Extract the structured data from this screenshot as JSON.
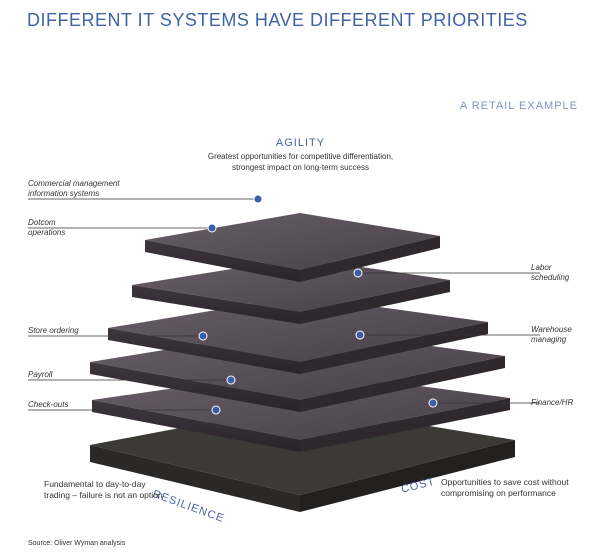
{
  "title": "DIFFERENT IT SYSTEMS HAVE DIFFERENT PRIORITIES",
  "subtitle": "A RETAIL EXAMPLE",
  "top_axis": {
    "label": "AGILITY",
    "desc_line1": "Greatest opportunities for competitive differentiation,",
    "desc_line2": "strongest impact on long-term success"
  },
  "left_labels": {
    "cmis": "Commercial management\ninformation systems",
    "dotcom": "Dotcom\noperations",
    "store": "Store ordering",
    "payroll": "Payroll",
    "checkouts": "Check-outs"
  },
  "right_labels": {
    "labor": "Labor\nscheduling",
    "warehouse": "Warehouse\nmanaging",
    "finance": "Finance/HR"
  },
  "bottom": {
    "resilience": "RESILIENCE",
    "cost": "COST",
    "resilience_note_1": "Fundamental to day-to-day",
    "resilience_note_2": "trading – failure is not an option",
    "cost_note_1": "Opportunities to save cost without",
    "cost_note_2": "compromising on performance"
  },
  "source": "Source: Oliver Wyman analysis",
  "colors": {
    "title": "#3f63a6",
    "accent": "#4a64a0",
    "chip": "#5a4f58",
    "pin": "#c9a04a",
    "dot": "#3a5fa8"
  }
}
